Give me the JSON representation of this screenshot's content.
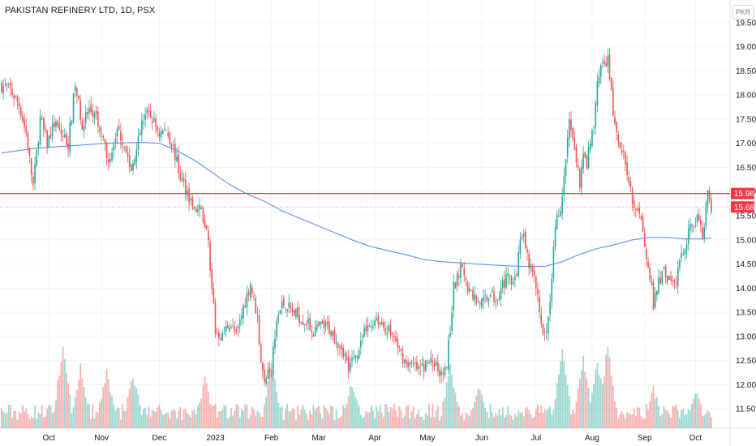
{
  "header": {
    "title": "PAKISTAN REFINERY LTD, 1D, PSX",
    "currency": "PKR"
  },
  "colors": {
    "up": "#26a69a",
    "down": "#ef5350",
    "ma": "#5b8ff0",
    "hline": "#f23645",
    "last": "#f23645"
  },
  "chart_data": {
    "type": "candlestick",
    "title": "PAKISTAN REFINERY LTD, 1D, PSX",
    "ylim": [
      11.1,
      19.85
    ],
    "y_ticks": [
      "11.50",
      "12.00",
      "12.50",
      "13.00",
      "13.50",
      "14.00",
      "14.50",
      "15.00",
      "15.50",
      "16.00",
      "16.50",
      "17.00",
      "17.50",
      "18.00",
      "18.50",
      "19.00",
      "19.50"
    ],
    "x_ticks": [
      "Oct",
      "Nov",
      "Dec",
      "2023",
      "Feb",
      "Mar",
      "Apr",
      "May",
      "Jun",
      "Jul",
      "Aug",
      "Sep",
      "Oct"
    ],
    "horizontal_line": {
      "value": 15.96,
      "label": "15.96"
    },
    "last_price": {
      "value": 15.68,
      "label": "15.68"
    },
    "price_anchors": [
      [
        0,
        18.2
      ],
      [
        5,
        18.1
      ],
      [
        10,
        17.8
      ],
      [
        14,
        17.2
      ],
      [
        18,
        16.1
      ],
      [
        22,
        17.5
      ],
      [
        26,
        17.0
      ],
      [
        30,
        17.4
      ],
      [
        34,
        17.2
      ],
      [
        38,
        17.0
      ],
      [
        42,
        18.2
      ],
      [
        46,
        17.4
      ],
      [
        50,
        17.7
      ],
      [
        54,
        17.5
      ],
      [
        58,
        17.0
      ],
      [
        62,
        16.6
      ],
      [
        66,
        17.3
      ],
      [
        70,
        17.0
      ],
      [
        74,
        16.4
      ],
      [
        78,
        17.2
      ],
      [
        82,
        17.6
      ],
      [
        86,
        17.5
      ],
      [
        90,
        17.2
      ],
      [
        94,
        17.3
      ],
      [
        98,
        16.9
      ],
      [
        102,
        16.3
      ],
      [
        106,
        16.0
      ],
      [
        110,
        15.6
      ],
      [
        114,
        15.6
      ],
      [
        118,
        15.0
      ],
      [
        120,
        14.0
      ],
      [
        122,
        13.1
      ],
      [
        126,
        13.0
      ],
      [
        130,
        13.3
      ],
      [
        134,
        13.0
      ],
      [
        138,
        13.6
      ],
      [
        142,
        14.1
      ],
      [
        146,
        13.4
      ],
      [
        148,
        12.5
      ],
      [
        150,
        12.0
      ],
      [
        152,
        12.4
      ],
      [
        154,
        12.3
      ],
      [
        156,
        13.1
      ],
      [
        158,
        13.6
      ],
      [
        162,
        13.7
      ],
      [
        166,
        13.5
      ],
      [
        170,
        13.4
      ],
      [
        174,
        13.3
      ],
      [
        178,
        13.1
      ],
      [
        182,
        13.2
      ],
      [
        186,
        13.2
      ],
      [
        190,
        13.0
      ],
      [
        194,
        12.8
      ],
      [
        198,
        12.4
      ],
      [
        202,
        12.6
      ],
      [
        206,
        13.0
      ],
      [
        210,
        13.2
      ],
      [
        214,
        13.4
      ],
      [
        218,
        13.2
      ],
      [
        222,
        13.1
      ],
      [
        226,
        12.8
      ],
      [
        230,
        12.5
      ],
      [
        234,
        12.4
      ],
      [
        238,
        12.3
      ],
      [
        242,
        12.4
      ],
      [
        246,
        12.5
      ],
      [
        250,
        12.3
      ],
      [
        254,
        12.4
      ],
      [
        258,
        14.0
      ],
      [
        262,
        14.4
      ],
      [
        266,
        14.0
      ],
      [
        270,
        13.8
      ],
      [
        274,
        13.7
      ],
      [
        278,
        13.9
      ],
      [
        282,
        13.8
      ],
      [
        286,
        14.1
      ],
      [
        290,
        14.2
      ],
      [
        294,
        14.3
      ],
      [
        296,
        15.1
      ],
      [
        298,
        15.0
      ],
      [
        300,
        14.6
      ],
      [
        304,
        14.2
      ],
      [
        308,
        13.3
      ],
      [
        310,
        13.0
      ],
      [
        312,
        13.3
      ],
      [
        314,
        14.3
      ],
      [
        316,
        15.2
      ],
      [
        318,
        15.6
      ],
      [
        320,
        15.8
      ],
      [
        322,
        16.7
      ],
      [
        324,
        17.4
      ],
      [
        326,
        17.0
      ],
      [
        328,
        16.7
      ],
      [
        330,
        16.2
      ],
      [
        332,
        16.7
      ],
      [
        334,
        16.6
      ],
      [
        336,
        17.0
      ],
      [
        338,
        17.4
      ],
      [
        340,
        18.3
      ],
      [
        342,
        18.5
      ],
      [
        344,
        18.6
      ],
      [
        346,
        18.7
      ],
      [
        348,
        18.0
      ],
      [
        350,
        17.3
      ],
      [
        352,
        17.0
      ],
      [
        356,
        16.6
      ],
      [
        358,
        16.3
      ],
      [
        360,
        15.8
      ],
      [
        362,
        15.5
      ],
      [
        364,
        15.5
      ],
      [
        366,
        15.2
      ],
      [
        368,
        14.7
      ],
      [
        370,
        14.3
      ],
      [
        372,
        13.6
      ],
      [
        374,
        14.0
      ],
      [
        378,
        14.4
      ],
      [
        380,
        14.2
      ],
      [
        384,
        14.0
      ],
      [
        386,
        14.4
      ],
      [
        390,
        14.9
      ],
      [
        392,
        15.1
      ],
      [
        394,
        15.3
      ],
      [
        396,
        15.4
      ],
      [
        398,
        15.5
      ],
      [
        400,
        15.1
      ],
      [
        402,
        15.7
      ],
      [
        403,
        15.9
      ],
      [
        405,
        15.7
      ]
    ],
    "ma_anchors": [
      [
        0,
        16.8
      ],
      [
        20,
        16.9
      ],
      [
        40,
        16.95
      ],
      [
        60,
        17.0
      ],
      [
        80,
        17.02
      ],
      [
        90,
        17.0
      ],
      [
        100,
        16.85
      ],
      [
        110,
        16.65
      ],
      [
        120,
        16.4
      ],
      [
        130,
        16.15
      ],
      [
        140,
        15.95
      ],
      [
        150,
        15.8
      ],
      [
        160,
        15.6
      ],
      [
        170,
        15.45
      ],
      [
        180,
        15.3
      ],
      [
        190,
        15.15
      ],
      [
        200,
        15.0
      ],
      [
        210,
        14.87
      ],
      [
        220,
        14.78
      ],
      [
        230,
        14.7
      ],
      [
        240,
        14.6
      ],
      [
        250,
        14.55
      ],
      [
        260,
        14.53
      ],
      [
        270,
        14.5
      ],
      [
        280,
        14.48
      ],
      [
        290,
        14.46
      ],
      [
        300,
        14.45
      ],
      [
        310,
        14.45
      ],
      [
        320,
        14.55
      ],
      [
        330,
        14.7
      ],
      [
        340,
        14.82
      ],
      [
        350,
        14.9
      ],
      [
        360,
        15.0
      ],
      [
        370,
        15.05
      ],
      [
        380,
        15.05
      ],
      [
        390,
        15.02
      ],
      [
        400,
        15.02
      ],
      [
        405,
        15.04
      ]
    ],
    "volume_spikes": [
      [
        35,
        2.5
      ],
      [
        45,
        1.8
      ],
      [
        60,
        1.7
      ],
      [
        75,
        1.6
      ],
      [
        116,
        1.4
      ],
      [
        154,
        2.0
      ],
      [
        200,
        1.3
      ],
      [
        256,
        1.8
      ],
      [
        272,
        1.2
      ],
      [
        320,
        2.4
      ],
      [
        332,
        2.1
      ],
      [
        340,
        2.0
      ],
      [
        346,
        2.5
      ],
      [
        372,
        1.1
      ],
      [
        396,
        1.1
      ]
    ]
  }
}
